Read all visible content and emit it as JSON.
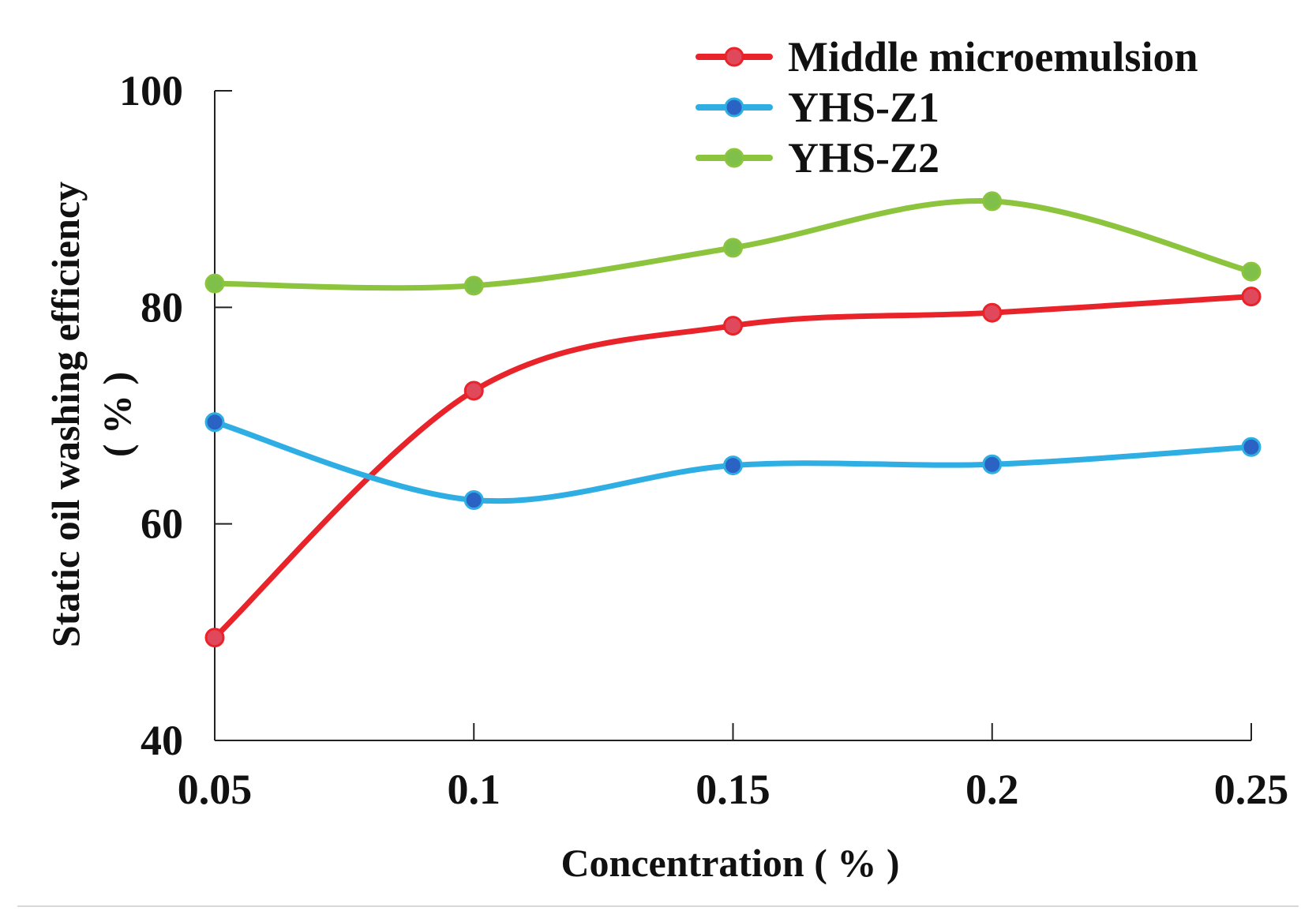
{
  "chart_data": {
    "type": "line",
    "smooth": true,
    "x": [
      0.05,
      0.1,
      0.15,
      0.2,
      0.25
    ],
    "x_tick_labels": [
      "0.05",
      "0.1",
      "0.15",
      "0.2",
      "0.25"
    ],
    "y_ticks": [
      40,
      60,
      80,
      100
    ],
    "y_tick_labels": [
      "40",
      "60",
      "80",
      "100"
    ],
    "ylim": [
      40,
      100
    ],
    "xlabel": "Concentration ( % )",
    "ylabel": "Static oil washing efficiency",
    "ylabel_line2": "( % )",
    "grid": false,
    "legend_position": "top-right",
    "series": [
      {
        "name": "Middle microemulsion",
        "color": "#e8232a",
        "marker_color": "#e0485c",
        "values": [
          49.5,
          72.3,
          78.3,
          79.5,
          81.0
        ]
      },
      {
        "name": "YHS-Z1",
        "color": "#2eaee3",
        "marker_color": "#2b63c4",
        "values": [
          69.4,
          62.2,
          65.4,
          65.5,
          67.1
        ]
      },
      {
        "name": "YHS-Z2",
        "color": "#8cc43e",
        "marker_color": "#7ec04a",
        "values": [
          82.2,
          82.0,
          85.5,
          89.8,
          83.3
        ]
      }
    ]
  }
}
